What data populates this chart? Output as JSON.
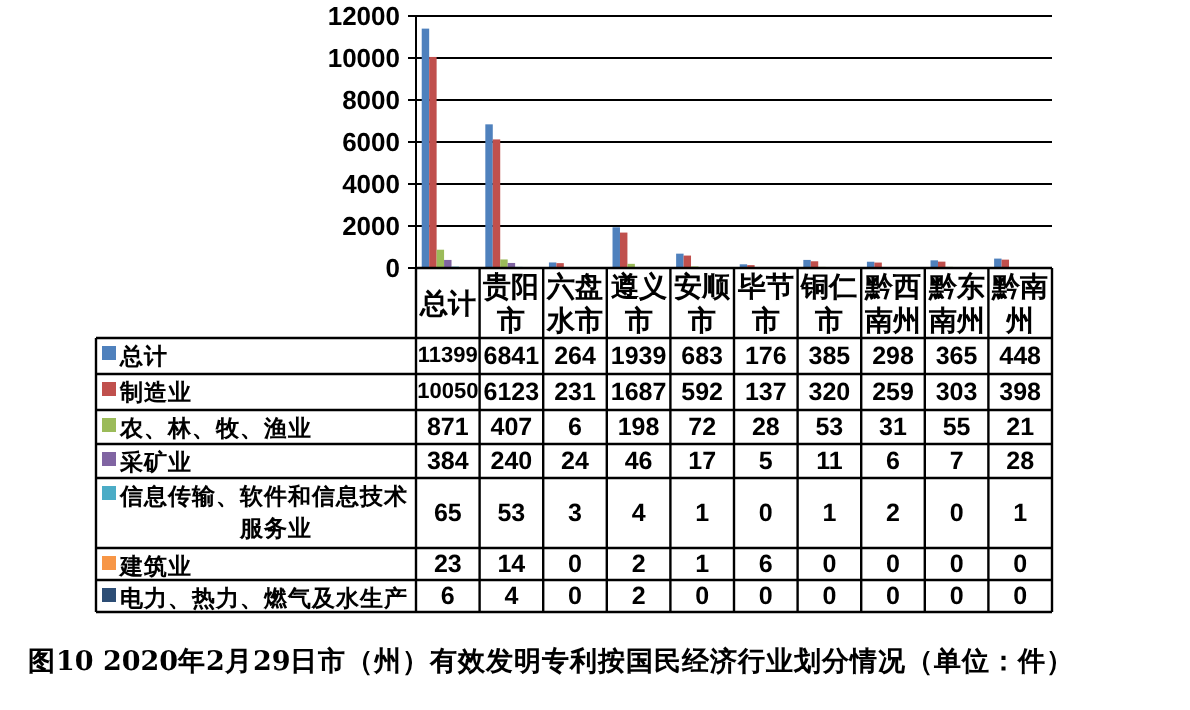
{
  "chart_data": {
    "type": "bar",
    "annotations": [
      "图10 2020年2月29日市（州）有效发明专利按国民经济行业划分情况（单位：件）"
    ],
    "categories": [
      "总计",
      "贵阳市",
      "六盘水市",
      "遵义市",
      "安顺市",
      "毕节市",
      "铜仁市",
      "黔西南州",
      "黔东南州",
      "黔南州"
    ],
    "series": [
      {
        "name": "总计",
        "color": "#4f81bd",
        "values": [
          11399,
          6841,
          264,
          1939,
          683,
          176,
          385,
          298,
          365,
          448
        ]
      },
      {
        "name": "制造业",
        "color": "#c0504d",
        "values": [
          10050,
          6123,
          231,
          1687,
          592,
          137,
          320,
          259,
          303,
          398
        ]
      },
      {
        "name": "农、林、牧、渔业",
        "color": "#9bbb59",
        "values": [
          871,
          407,
          6,
          198,
          72,
          28,
          53,
          31,
          55,
          21
        ]
      },
      {
        "name": "采矿业",
        "color": "#8064a2",
        "values": [
          384,
          240,
          24,
          46,
          17,
          5,
          11,
          6,
          7,
          28
        ]
      },
      {
        "name": "信息传输、软件和信息技术服务业",
        "color": "#4bacc6",
        "values": [
          65,
          53,
          3,
          4,
          1,
          0,
          1,
          2,
          0,
          1
        ]
      },
      {
        "name": "建筑业",
        "color": "#f79646",
        "values": [
          23,
          14,
          0,
          2,
          1,
          6,
          0,
          0,
          0,
          0
        ]
      },
      {
        "name": "电力、热力、燃气及水生产",
        "color": "#2c4d75",
        "values": [
          6,
          4,
          0,
          2,
          0,
          0,
          0,
          0,
          0,
          0
        ]
      }
    ],
    "ylim": [
      0,
      12000
    ],
    "yticks": [
      0,
      2000,
      4000,
      6000,
      8000,
      10000,
      12000
    ],
    "grid": "y",
    "data_labels": true,
    "legend": "bottom"
  }
}
